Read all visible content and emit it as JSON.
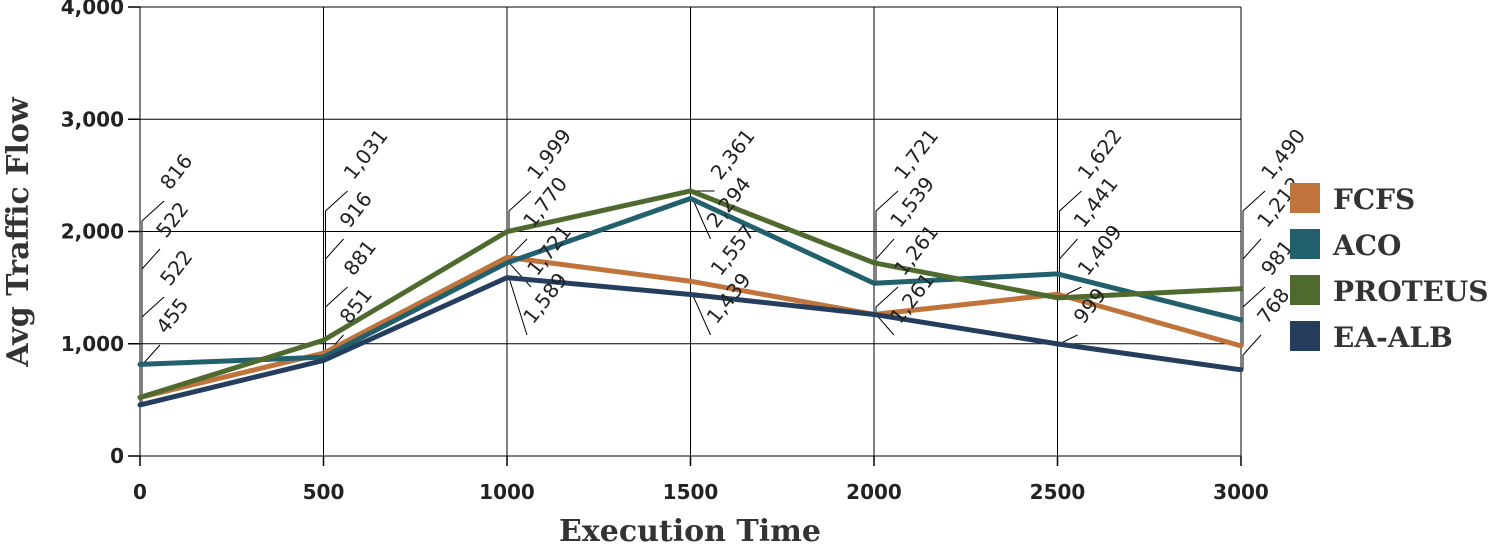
{
  "chart_data": {
    "type": "line",
    "title": "",
    "xlabel": "Execution Time",
    "ylabel": "Avg Traffic Flow",
    "x": [
      0,
      500,
      1000,
      1500,
      2000,
      2500,
      3000
    ],
    "x_tick_labels": [
      "0",
      "500",
      "1000",
      "1500",
      "2000",
      "2500",
      "3000"
    ],
    "y_tick_labels": [
      "0",
      "1,000",
      "2,000",
      "3,000",
      "4,000"
    ],
    "ylim": [
      0,
      4000
    ],
    "grid": true,
    "legend_position": "right",
    "series": [
      {
        "name": "FCFS",
        "color": "#c0733a",
        "values": [
          522,
          916,
          1770,
          1557,
          1261,
          1441,
          981
        ],
        "labels": [
          "522",
          "916",
          "1,770",
          "1,557",
          "1,261",
          "1,441",
          "981"
        ]
      },
      {
        "name": "ACO",
        "color": "#23606e",
        "values": [
          816,
          881,
          1721,
          2294,
          1539,
          1622,
          1212
        ],
        "labels": [
          "816",
          "881",
          "1,721",
          "2,294",
          "1,539",
          "1,622",
          "1,212"
        ]
      },
      {
        "name": "PROTEUS",
        "color": "#4f6a2e",
        "values": [
          522,
          1031,
          1999,
          2361,
          1721,
          1409,
          1490
        ],
        "labels": [
          "522",
          "1,031",
          "1,999",
          "2,361",
          "1,721",
          "1,409",
          "1,490"
        ]
      },
      {
        "name": "EA-ALB",
        "color": "#263e5e",
        "values": [
          455,
          851,
          1589,
          1439,
          1261,
          999,
          768
        ],
        "labels": [
          "455",
          "851",
          "1,589",
          "1,439",
          "1,261",
          "999",
          "768"
        ]
      }
    ]
  }
}
